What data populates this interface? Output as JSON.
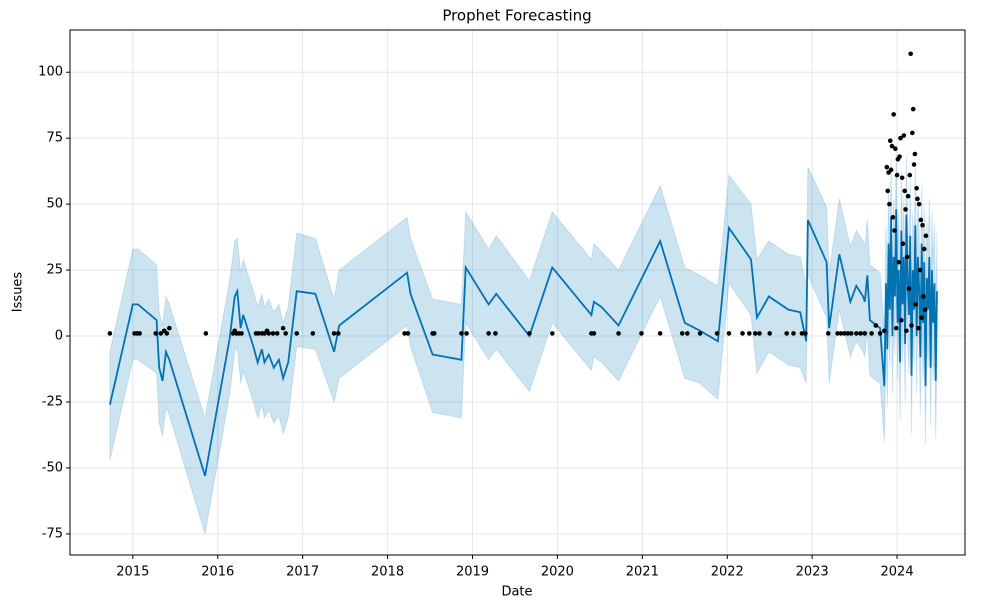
{
  "chart_data": {
    "type": "line",
    "title": "Prophet Forecasting",
    "xlabel": "Date",
    "ylabel": "Issues",
    "xlim": [
      2014.26,
      2024.8
    ],
    "xticks": [
      2015,
      2016,
      2017,
      2018,
      2019,
      2020,
      2021,
      2022,
      2023,
      2024
    ],
    "ylim": [
      -83,
      116
    ],
    "yticks": [
      -75,
      -50,
      -25,
      0,
      25,
      50,
      75,
      100
    ],
    "grid": true,
    "forecast": {
      "color": "#0072b2",
      "band_color": "#0072b2",
      "x": [
        2014.73,
        2015.0,
        2015.06,
        2015.28,
        2015.31,
        2015.35,
        2015.39,
        2015.43,
        2015.85,
        2016.14,
        2016.2,
        2016.23,
        2016.27,
        2016.3,
        2016.42,
        2016.47,
        2016.52,
        2016.55,
        2016.6,
        2016.66,
        2016.72,
        2016.77,
        2016.83,
        2016.93,
        2017.15,
        2017.37,
        2017.43,
        2018.23,
        2018.27,
        2018.53,
        2018.87,
        2018.92,
        2019.19,
        2019.28,
        2019.67,
        2019.94,
        2020.4,
        2020.43,
        2020.52,
        2020.72,
        2021.21,
        2021.5,
        2021.68,
        2021.89,
        2022.02,
        2022.28,
        2022.35,
        2022.49,
        2022.72,
        2022.86,
        2022.93,
        2022.95,
        2023.17,
        2023.2,
        2023.32,
        2023.45,
        2023.52,
        2023.6,
        2023.62,
        2023.65,
        2023.68,
        2023.8,
        2023.85,
        2023.87,
        2023.885,
        2023.9,
        2023.915,
        2023.93,
        2023.945,
        2023.96,
        2023.975,
        2023.99,
        2024.005,
        2024.02,
        2024.035,
        2024.05,
        2024.065,
        2024.08,
        2024.095,
        2024.11,
        2024.125,
        2024.14,
        2024.155,
        2024.17,
        2024.185,
        2024.2,
        2024.215,
        2024.23,
        2024.245,
        2024.26,
        2024.275,
        2024.29,
        2024.305,
        2024.32,
        2024.335,
        2024.35,
        2024.365,
        2024.38,
        2024.395,
        2024.41,
        2024.425,
        2024.44,
        2024.455,
        2024.47
      ],
      "values": [
        -26,
        12,
        12,
        6,
        -12,
        -17,
        -6,
        -9,
        -53,
        -1,
        15,
        17,
        3,
        8,
        -4,
        -10,
        -5,
        -10,
        -7,
        -12,
        -9,
        -16,
        -10,
        17,
        16,
        -6,
        4,
        24,
        16,
        -7,
        -9,
        26,
        12,
        16,
        0,
        26,
        8,
        13,
        11,
        4,
        36,
        5,
        2,
        -2,
        41,
        29,
        7,
        15,
        10,
        9,
        -2,
        44,
        28,
        3,
        31,
        13,
        19,
        15,
        13,
        23,
        6,
        3,
        -19,
        20,
        -5,
        35,
        10,
        45,
        0,
        30,
        15,
        48,
        5,
        25,
        -10,
        40,
        12,
        30,
        -3,
        46,
        20,
        8,
        38,
        -15,
        25,
        10,
        42,
        0,
        30,
        18,
        -8,
        35,
        5,
        28,
        -19,
        22,
        10,
        30,
        -12,
        25,
        5,
        20,
        -17,
        17
      ],
      "lower": [
        -47,
        -9,
        -9,
        -14,
        -33,
        -38,
        -27,
        -30,
        -75,
        -22,
        -6,
        -4,
        -18,
        -13,
        -25,
        -31,
        -26,
        -31,
        -28,
        -33,
        -30,
        -37,
        -31,
        -4,
        -5,
        -25,
        -16,
        4,
        -4,
        -29,
        -31,
        5,
        -9,
        -5,
        -21,
        5,
        -13,
        -8,
        -10,
        -17,
        15,
        -16,
        -18,
        -24,
        20,
        8,
        -14,
        -6,
        -11,
        -12,
        -18,
        23,
        7,
        -18,
        10,
        -8,
        -2,
        -6,
        -8,
        2,
        -15,
        -18,
        -40,
        -2,
        -27,
        13,
        -12,
        23,
        -22,
        8,
        -7,
        26,
        -17,
        3,
        -32,
        18,
        -10,
        8,
        -25,
        24,
        -2,
        -14,
        16,
        -37,
        3,
        -12,
        20,
        -22,
        8,
        -4,
        -30,
        13,
        -17,
        6,
        -41,
        0,
        -12,
        8,
        -34,
        3,
        -17,
        -2,
        -39,
        -5
      ],
      "upper": [
        -6,
        33,
        33,
        27,
        9,
        4,
        15,
        12,
        -31,
        21,
        36,
        37,
        24,
        29,
        17,
        11,
        16,
        11,
        14,
        9,
        12,
        5,
        11,
        39,
        37,
        14,
        25,
        45,
        37,
        14,
        12,
        47,
        33,
        38,
        21,
        47,
        29,
        35,
        32,
        25,
        57,
        26,
        23,
        19,
        61,
        50,
        29,
        36,
        31,
        30,
        19,
        64,
        49,
        24,
        52,
        34,
        40,
        36,
        34,
        44,
        27,
        24,
        2,
        42,
        17,
        57,
        32,
        67,
        22,
        52,
        37,
        70,
        27,
        47,
        12,
        62,
        34,
        52,
        19,
        68,
        42,
        30,
        60,
        7,
        47,
        32,
        64,
        22,
        52,
        40,
        14,
        57,
        27,
        50,
        3,
        44,
        32,
        52,
        10,
        47,
        27,
        42,
        5,
        39
      ]
    },
    "observed": {
      "color": "#000000",
      "x": [
        2014.73,
        2015.02,
        2015.05,
        2015.08,
        2015.27,
        2015.33,
        2015.37,
        2015.4,
        2015.43,
        2015.86,
        2016.18,
        2016.2,
        2016.22,
        2016.25,
        2016.28,
        2016.45,
        2016.48,
        2016.52,
        2016.55,
        2016.58,
        2016.6,
        2016.65,
        2016.7,
        2016.77,
        2016.8,
        2016.93,
        2017.12,
        2017.37,
        2017.42,
        2018.2,
        2018.24,
        2018.53,
        2018.55,
        2018.87,
        2018.93,
        2019.19,
        2019.27,
        2019.67,
        2019.94,
        2020.4,
        2020.43,
        2020.72,
        2020.99,
        2021.21,
        2021.47,
        2021.53,
        2021.68,
        2021.88,
        2022.02,
        2022.18,
        2022.26,
        2022.33,
        2022.38,
        2022.5,
        2022.7,
        2022.78,
        2022.88,
        2022.92,
        2023.19,
        2023.3,
        2023.34,
        2023.38,
        2023.42,
        2023.46,
        2023.52,
        2023.57,
        2023.62,
        2023.7,
        2023.75,
        2023.8,
        2023.85,
        2023.88,
        2023.89,
        2023.9,
        2023.91,
        2023.92,
        2023.93,
        2023.94,
        2023.95,
        2023.96,
        2023.97,
        2023.98,
        2023.99,
        2024.0,
        2024.01,
        2024.02,
        2024.03,
        2024.04,
        2024.05,
        2024.06,
        2024.07,
        2024.08,
        2024.09,
        2024.1,
        2024.11,
        2024.12,
        2024.13,
        2024.14,
        2024.15,
        2024.16,
        2024.17,
        2024.18,
        2024.19,
        2024.2,
        2024.21,
        2024.22,
        2024.23,
        2024.24,
        2024.25,
        2024.26,
        2024.27,
        2024.28,
        2024.29,
        2024.3,
        2024.31,
        2024.32,
        2024.33,
        2024.34
      ],
      "values": [
        1,
        1,
        1,
        1,
        1,
        1,
        2,
        1,
        3,
        1,
        1,
        2,
        1,
        1,
        1,
        1,
        1,
        1,
        1,
        2,
        1,
        1,
        1,
        3,
        1,
        1,
        1,
        1,
        1,
        1,
        1,
        1,
        1,
        1,
        1,
        1,
        1,
        1,
        1,
        1,
        1,
        1,
        1,
        1,
        1,
        1,
        1,
        1,
        1,
        1,
        1,
        1,
        1,
        1,
        1,
        1,
        1,
        1,
        1,
        1,
        1,
        1,
        1,
        1,
        1,
        1,
        1,
        1,
        4,
        1,
        2,
        64,
        55,
        62,
        50,
        74,
        63,
        72,
        45,
        84,
        40,
        71,
        3,
        61,
        67,
        28,
        68,
        75,
        6,
        60,
        35,
        76,
        55,
        48,
        2,
        30,
        53,
        18,
        61,
        107,
        4,
        77,
        86,
        65,
        69,
        12,
        56,
        52,
        3,
        50,
        25,
        44,
        7,
        42,
        15,
        33,
        10,
        38
      ]
    }
  }
}
